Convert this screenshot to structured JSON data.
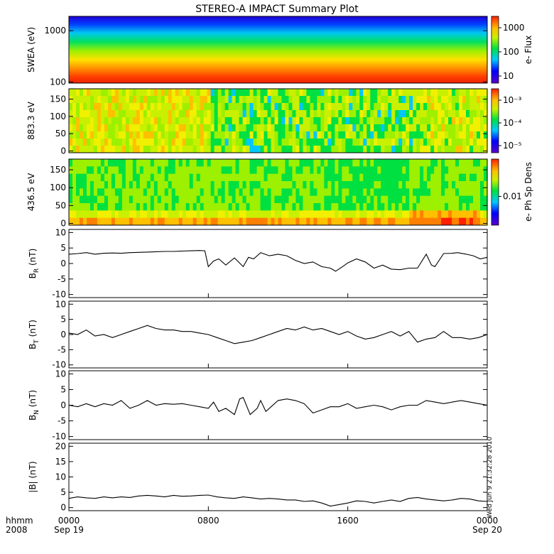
{
  "chart_data": {
    "type": "line",
    "title": "STEREO-A IMPACT Summary Plot",
    "date_label": "Wed Jun 9 21:32:28 2010",
    "x": {
      "unit_label": "hhmm",
      "year_label": "2008",
      "range_hours": [
        0,
        24
      ],
      "ticks": [
        {
          "hours": 0,
          "label": "0000",
          "date": "Sep 19"
        },
        {
          "hours": 8,
          "label": "0800",
          "date": ""
        },
        {
          "hours": 16,
          "label": "1600",
          "date": ""
        },
        {
          "hours": 24,
          "label": "0000",
          "date": "Sep 20"
        }
      ]
    },
    "spectrograms": [
      {
        "ylabel": "SWEA (eV)",
        "yscale": "log",
        "ylim": [
          95,
          1900
        ],
        "yticks": [
          {
            "v": 100,
            "label": "100"
          },
          {
            "v": 1000,
            "label": "1000"
          }
        ],
        "colorbar": {
          "label": "e- Flux",
          "scale": "log",
          "ticks": [
            "1000",
            "100",
            "10"
          ]
        },
        "description_rows": "energy bands from high (blue) to low (red)"
      },
      {
        "ylabel": "883.3 eV",
        "yscale": "linear",
        "ylim": [
          -5,
          180
        ],
        "yticks": [
          {
            "v": 0,
            "label": "0"
          },
          {
            "v": 50,
            "label": "50"
          },
          {
            "v": 100,
            "label": "100"
          },
          {
            "v": 150,
            "label": "150"
          }
        ],
        "colorbar": {
          "label": "e- Ph Sp Dens",
          "scale": "log",
          "ticks": [
            "10⁻³",
            "10⁻⁴",
            "10⁻⁵"
          ]
        }
      },
      {
        "ylabel": "436.5 eV",
        "yscale": "linear",
        "ylim": [
          -5,
          180
        ],
        "yticks": [
          {
            "v": 0,
            "label": "0"
          },
          {
            "v": 50,
            "label": "50"
          },
          {
            "v": 100,
            "label": "100"
          },
          {
            "v": 150,
            "label": "150"
          }
        ],
        "colorbar": {
          "label": "e- Ph Sp Dens",
          "scale": "log",
          "ticks": [
            "0.01"
          ]
        }
      }
    ],
    "colorbar_shared_label": "e- Ph Sp Dens",
    "line_panels": [
      {
        "ylabel_main": "B",
        "ylabel_sub": "R",
        "ylabel_unit": "(nT)",
        "ylim": [
          -11,
          11
        ],
        "yticks": [
          -10,
          -5,
          0,
          5,
          10
        ],
        "series": {
          "x": [
            0,
            0.5,
            1,
            1.5,
            2,
            2.5,
            3,
            3.5,
            4,
            4.5,
            5,
            5.5,
            6,
            6.5,
            7,
            7.5,
            7.8,
            8.0,
            8.3,
            8.6,
            9,
            9.5,
            10,
            10.3,
            10.6,
            11,
            11.5,
            12,
            12.5,
            13,
            13.5,
            14,
            14.5,
            15,
            15.3,
            15.7,
            16,
            16.5,
            17,
            17.5,
            18,
            18.5,
            19,
            19.5,
            20,
            20.5,
            20.8,
            21,
            21.5,
            22,
            22.3,
            22.8,
            23.2,
            23.6,
            24
          ],
          "y": [
            3,
            3.2,
            3.5,
            3,
            3.3,
            3.4,
            3.3,
            3.5,
            3.6,
            3.7,
            3.8,
            3.9,
            3.9,
            4,
            4.1,
            4.2,
            4.1,
            -1,
            0.8,
            1.5,
            -0.5,
            1.8,
            -1,
            2,
            1.5,
            3.5,
            2.5,
            3,
            2.5,
            1,
            0,
            0.5,
            -1,
            -1.5,
            -2.5,
            -1,
            0.2,
            1.5,
            0.5,
            -1.5,
            -0.5,
            -1.8,
            -2,
            -1.5,
            -1.5,
            3,
            -0.5,
            -1,
            3.2,
            3.3,
            3.5,
            3,
            2.5,
            1.5,
            2
          ]
        }
      },
      {
        "ylabel_main": "B",
        "ylabel_sub": "T",
        "ylabel_unit": "(nT)",
        "ylim": [
          -11,
          11
        ],
        "yticks": [
          -10,
          -5,
          0,
          5,
          10
        ],
        "series": {
          "x": [
            0,
            0.5,
            1,
            1.5,
            2,
            2.5,
            3,
            3.5,
            4,
            4.5,
            5,
            5.5,
            6,
            6.5,
            7,
            7.5,
            8,
            8.5,
            9,
            9.5,
            10,
            10.5,
            11,
            11.5,
            12,
            12.5,
            13,
            13.5,
            14,
            14.5,
            15,
            15.5,
            16,
            16.5,
            17,
            17.5,
            18,
            18.5,
            19,
            19.5,
            20,
            20.5,
            21,
            21.5,
            22,
            22.5,
            23,
            23.5,
            24
          ],
          "y": [
            0.5,
            0,
            1.5,
            -0.5,
            0,
            -1,
            0,
            1,
            2,
            3,
            2,
            1.5,
            1.5,
            1,
            1,
            0.5,
            0,
            -1,
            -2,
            -3,
            -2.5,
            -2,
            -1,
            0,
            1,
            2,
            1.5,
            2.5,
            1.5,
            2,
            1,
            0,
            1,
            -0.5,
            -1.5,
            -1,
            0,
            1,
            -0.5,
            1,
            -2.5,
            -1.5,
            -1,
            1,
            -1,
            -1,
            -1.5,
            -1,
            0
          ]
        }
      },
      {
        "ylabel_main": "B",
        "ylabel_sub": "N",
        "ylabel_unit": "(nT)",
        "ylim": [
          -11,
          11
        ],
        "yticks": [
          -10,
          -5,
          0,
          5,
          10
        ],
        "series": {
          "x": [
            0,
            0.5,
            1,
            1.5,
            2,
            2.5,
            3,
            3.5,
            4,
            4.5,
            5,
            5.5,
            6,
            6.5,
            7,
            7.5,
            8,
            8.3,
            8.6,
            9,
            9.5,
            9.8,
            10,
            10.4,
            10.8,
            11,
            11.3,
            11.6,
            12,
            12.5,
            13,
            13.5,
            14,
            14.5,
            15,
            15.5,
            16,
            16.5,
            17,
            17.5,
            18,
            18.5,
            19,
            19.5,
            20,
            20.5,
            21,
            21.5,
            22,
            22.5,
            23,
            23.5,
            24
          ],
          "y": [
            0,
            -0.5,
            0.5,
            -0.5,
            0.5,
            0,
            1.5,
            -1,
            0,
            1.5,
            0,
            0.5,
            0.3,
            0.5,
            0,
            -0.5,
            -1,
            1,
            -2,
            -1,
            -3,
            2,
            2.5,
            -3,
            -1,
            1.5,
            -2,
            -0.5,
            1.5,
            2,
            1.5,
            0.5,
            -2.5,
            -1.5,
            -0.5,
            -0.5,
            0.5,
            -1,
            -0.5,
            0,
            -0.5,
            -1.5,
            -0.5,
            0,
            0,
            1.5,
            1,
            0.5,
            1,
            1.5,
            1,
            0.5,
            0
          ]
        }
      },
      {
        "ylabel_main": "|B|",
        "ylabel_sub": "",
        "ylabel_unit": "(nT)",
        "ylim": [
          -1,
          21
        ],
        "yticks": [
          0,
          5,
          10,
          15,
          20
        ],
        "series": {
          "x": [
            0,
            0.5,
            1,
            1.5,
            2,
            2.5,
            3,
            3.5,
            4,
            4.5,
            5,
            5.5,
            6,
            6.5,
            7,
            7.5,
            8,
            8.5,
            9,
            9.5,
            10,
            10.5,
            11,
            11.5,
            12,
            12.5,
            13,
            13.5,
            14,
            14.5,
            15,
            15.5,
            16,
            16.5,
            17,
            17.5,
            18,
            18.5,
            19,
            19.5,
            20,
            20.5,
            21,
            21.5,
            22,
            22.5,
            23,
            23.5,
            24
          ],
          "y": [
            3,
            3.5,
            3.2,
            3,
            3.5,
            3.2,
            3.5,
            3.3,
            3.8,
            4,
            3.8,
            3.5,
            4,
            3.7,
            3.8,
            4,
            4.1,
            3.5,
            3.2,
            3,
            3.5,
            3.2,
            2.8,
            3,
            2.8,
            2.5,
            2.5,
            2,
            2.2,
            1.5,
            0.5,
            1,
            1.5,
            2.2,
            2,
            1.5,
            2,
            2.5,
            2,
            3,
            3.3,
            2.8,
            2.5,
            2.2,
            2.5,
            3,
            2.8,
            2.2,
            2
          ]
        }
      }
    ]
  }
}
